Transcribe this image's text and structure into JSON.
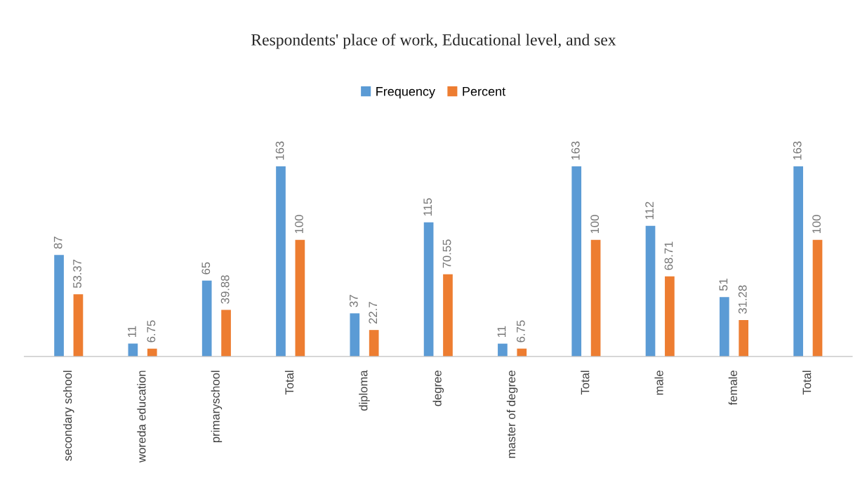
{
  "chart_data": {
    "type": "bar",
    "title": "Respondents' place of work, Educational level, and sex",
    "categories": [
      "secondary school",
      "woreda education",
      "primaryschool",
      "Total",
      "diploma",
      "degree",
      "master of degree",
      "Total",
      "male",
      "female",
      "Total"
    ],
    "series": [
      {
        "name": "Frequency",
        "color": "#5b9bd5",
        "values": [
          87,
          11,
          65,
          163,
          37,
          115,
          11,
          163,
          112,
          51,
          163
        ]
      },
      {
        "name": "Percent",
        "color": "#ed7d31",
        "values": [
          53.37,
          6.75,
          39.88,
          100,
          22.7,
          70.55,
          6.75,
          100,
          68.71,
          31.28,
          100
        ]
      }
    ],
    "data_labels": true,
    "legend": "top",
    "grid": false
  }
}
